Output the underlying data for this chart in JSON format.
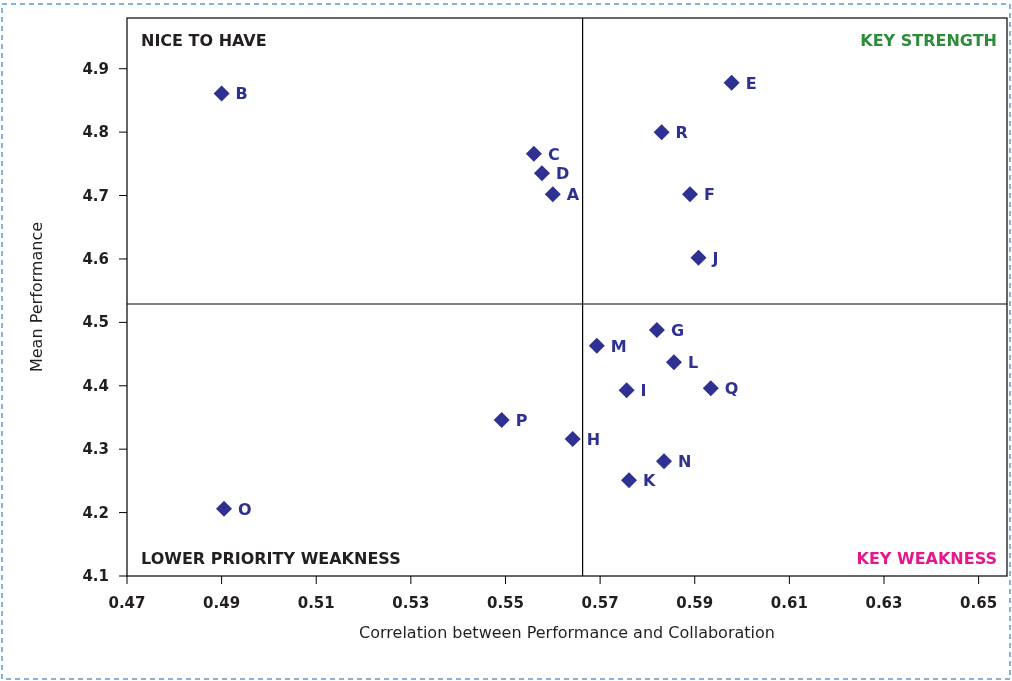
{
  "chart_data": {
    "type": "scatter",
    "xlabel": "Correlation between Performance and Collaboration",
    "ylabel": "Mean Performance",
    "xlim": [
      0.47,
      0.656
    ],
    "ylim": [
      4.1,
      4.98
    ],
    "xticks": [
      {
        "value": 0.47,
        "label": "0.47"
      },
      {
        "value": 0.49,
        "label": "0.49"
      },
      {
        "value": 0.51,
        "label": "0.51"
      },
      {
        "value": 0.53,
        "label": "0.53"
      },
      {
        "value": 0.55,
        "label": "0.55"
      },
      {
        "value": 0.57,
        "label": "0.57"
      },
      {
        "value": 0.59,
        "label": "0.59"
      },
      {
        "value": 0.61,
        "label": "0.61"
      },
      {
        "value": 0.63,
        "label": "0.63"
      },
      {
        "value": 0.65,
        "label": "0.65"
      }
    ],
    "yticks": [
      4.1,
      4.2,
      4.3,
      4.4,
      4.5,
      4.6,
      4.7,
      4.8,
      4.9
    ],
    "grid": false,
    "marker": "diamond",
    "series": [
      {
        "color": "#2e3192",
        "x": [
          0.49,
          0.5978,
          0.583,
          0.556,
          0.5577,
          0.56,
          0.589,
          0.5908,
          0.582,
          0.5693,
          0.5856,
          0.5756,
          0.5934,
          0.5492,
          0.5642,
          0.5835,
          0.5761,
          0.4905
        ],
        "values": [
          4.861,
          4.878,
          4.8,
          4.766,
          4.735,
          4.702,
          4.702,
          4.602,
          4.488,
          4.463,
          4.437,
          4.393,
          4.396,
          4.346,
          4.316,
          4.281,
          4.251,
          4.206
        ]
      }
    ],
    "ref_lines": [
      {
        "axis": "x",
        "value": 0.5663,
        "color": "#000000"
      },
      {
        "axis": "y",
        "value": 4.529,
        "color": "#000000"
      }
    ],
    "annotations": [
      {
        "text": "B",
        "x": 0.49,
        "y": 4.861
      },
      {
        "text": "E",
        "x": 0.5978,
        "y": 4.878
      },
      {
        "text": "R",
        "x": 0.583,
        "y": 4.8
      },
      {
        "text": "C",
        "x": 0.556,
        "y": 4.766
      },
      {
        "text": "D",
        "x": 0.5577,
        "y": 4.735
      },
      {
        "text": "A",
        "x": 0.56,
        "y": 4.702
      },
      {
        "text": "F",
        "x": 0.589,
        "y": 4.702
      },
      {
        "text": "J",
        "x": 0.5908,
        "y": 4.602
      },
      {
        "text": "G",
        "x": 0.582,
        "y": 4.488
      },
      {
        "text": "M",
        "x": 0.5693,
        "y": 4.463
      },
      {
        "text": "L",
        "x": 0.5856,
        "y": 4.437
      },
      {
        "text": "I",
        "x": 0.5756,
        "y": 4.393
      },
      {
        "text": "Q",
        "x": 0.5934,
        "y": 4.396
      },
      {
        "text": "P",
        "x": 0.5492,
        "y": 4.346
      },
      {
        "text": "H",
        "x": 0.5642,
        "y": 4.316
      },
      {
        "text": "N",
        "x": 0.5835,
        "y": 4.281
      },
      {
        "text": "K",
        "x": 0.5761,
        "y": 4.251
      },
      {
        "text": "O",
        "x": 0.4905,
        "y": 4.206
      },
      "NICE TO HAVE",
      "KEY STRENGTH",
      "LOWER PRIORITY WEAKNESS",
      "KEY WEAKNESS"
    ]
  }
}
